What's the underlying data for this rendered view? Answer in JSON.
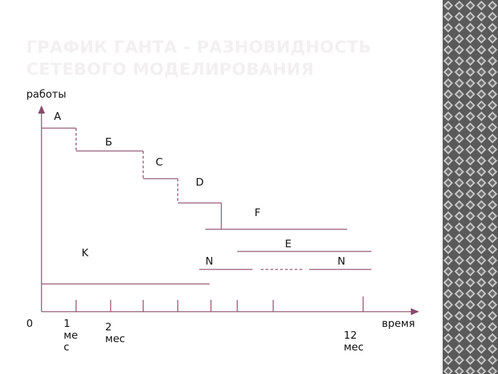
{
  "slide": {
    "title": "ГРАФИК ГАНТА - РАЗНОВИДНОСТЬ СЕТЕВОГО МОДЕЛИРОВАНИЯ",
    "colors": {
      "lines": "#8a4a6b",
      "title": "#f3f0f1",
      "pattern_dark": "#5a5a5a",
      "pattern_light": "#c8c8c8"
    }
  },
  "axes": {
    "y_label": "работы",
    "x_label": "время",
    "origin_label": "0",
    "tick_label_1": "1\nме\nс",
    "tick_label_2": "2\nмес",
    "tick_label_12": "12\nмес"
  },
  "tasks": {
    "a": "А",
    "b": "Б",
    "c": "С",
    "d": "D",
    "f": "F",
    "e": "E",
    "n1": "N",
    "n2": "N",
    "k": "K"
  }
}
